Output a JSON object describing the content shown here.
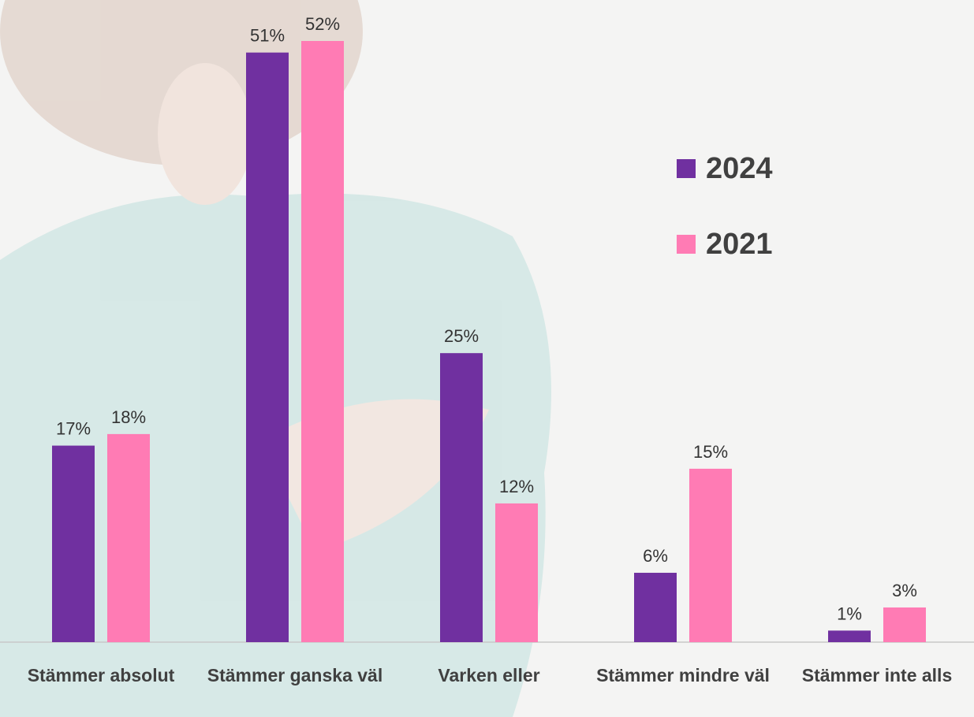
{
  "chart_data": {
    "type": "bar",
    "categories": [
      "Stämmer absolut",
      "Stämmer ganska väl",
      "Varken eller",
      "Stämmer mindre väl",
      "Stämmer inte alls"
    ],
    "series": [
      {
        "name": "2024",
        "color": "#7030a0",
        "values": [
          17,
          51,
          25,
          6,
          1
        ],
        "value_labels": [
          "17%",
          "51%",
          "25%",
          "6%",
          "1%"
        ]
      },
      {
        "name": "2021",
        "color": "#ff7bb4",
        "values": [
          18,
          52,
          12,
          15,
          3
        ],
        "value_labels": [
          "18%",
          "52%",
          "12%",
          "15%",
          "3%"
        ]
      }
    ],
    "ylim": [
      0,
      55
    ]
  }
}
